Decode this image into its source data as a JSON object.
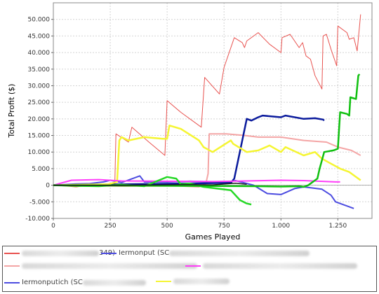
{
  "chart_data": {
    "type": "line",
    "xlabel": "Games Played",
    "ylabel": "Total Profit ($)",
    "xlim": [
      0,
      1400
    ],
    "ylim": [
      -10000,
      55000
    ],
    "grid": true,
    "legend_position": "bottom",
    "x_ticks": [
      "0",
      "250",
      "500",
      "750",
      "1.000",
      "1.250"
    ],
    "x_tick_values": [
      0,
      250,
      500,
      750,
      1000,
      1250
    ],
    "y_ticks": [
      "-10.000",
      "-5.000",
      "0",
      "5.000",
      "10.000",
      "15.000",
      "20.000",
      "25.000",
      "30.000",
      "35.000",
      "40.000",
      "45.000",
      "50.000"
    ],
    "y_tick_values": [
      -10000,
      -5000,
      0,
      5000,
      10000,
      15000,
      20000,
      25000,
      30000,
      35000,
      40000,
      45000,
      50000
    ],
    "series": [
      {
        "name": "349)",
        "color": "#e8524f",
        "width": 1,
        "points": [
          [
            0,
            0
          ],
          [
            100,
            -500
          ],
          [
            200,
            300
          ],
          [
            270,
            500
          ],
          [
            275,
            15500
          ],
          [
            330,
            13000
          ],
          [
            345,
            17500
          ],
          [
            420,
            13000
          ],
          [
            490,
            9000
          ],
          [
            500,
            25500
          ],
          [
            560,
            22000
          ],
          [
            650,
            17500
          ],
          [
            665,
            32500
          ],
          [
            730,
            27500
          ],
          [
            750,
            35500
          ],
          [
            795,
            44500
          ],
          [
            830,
            43000
          ],
          [
            840,
            41500
          ],
          [
            850,
            43500
          ],
          [
            900,
            46000
          ],
          [
            950,
            42500
          ],
          [
            1000,
            40000
          ],
          [
            1005,
            44500
          ],
          [
            1040,
            45500
          ],
          [
            1080,
            41500
          ],
          [
            1095,
            43000
          ],
          [
            1110,
            39000
          ],
          [
            1130,
            38000
          ],
          [
            1150,
            33000
          ],
          [
            1180,
            29000
          ],
          [
            1185,
            45000
          ],
          [
            1200,
            45500
          ],
          [
            1220,
            41000
          ],
          [
            1245,
            36000
          ],
          [
            1250,
            48000
          ],
          [
            1290,
            46000
          ],
          [
            1300,
            44000
          ],
          [
            1320,
            44500
          ],
          [
            1335,
            40500
          ],
          [
            1340,
            44000
          ],
          [
            1350,
            51500
          ]
        ]
      },
      {
        "name": "",
        "color": "#f4a5a5",
        "width": 2,
        "points": [
          [
            0,
            0
          ],
          [
            300,
            -300
          ],
          [
            550,
            -200
          ],
          [
            640,
            -500
          ],
          [
            670,
            500
          ],
          [
            680,
            3500
          ],
          [
            685,
            15500
          ],
          [
            760,
            15500
          ],
          [
            840,
            15000
          ],
          [
            900,
            14500
          ],
          [
            1000,
            14500
          ],
          [
            1100,
            13500
          ],
          [
            1200,
            13000
          ],
          [
            1250,
            11500
          ],
          [
            1310,
            10500
          ],
          [
            1350,
            9000
          ]
        ]
      },
      {
        "name": "Iermonput (SC)",
        "color": "#4c4ce0",
        "width": 2,
        "points": [
          [
            0,
            0
          ],
          [
            100,
            400
          ],
          [
            160,
            500
          ],
          [
            220,
            1000
          ],
          [
            250,
            1500
          ],
          [
            300,
            800
          ],
          [
            380,
            2800
          ],
          [
            400,
            1000
          ],
          [
            500,
            1000
          ],
          [
            600,
            1200
          ],
          [
            700,
            1000
          ],
          [
            760,
            800
          ],
          [
            800,
            1400
          ],
          [
            880,
            0
          ],
          [
            940,
            -2500
          ],
          [
            1000,
            -2800
          ],
          [
            1060,
            -1000
          ],
          [
            1100,
            -500
          ],
          [
            1180,
            -1200
          ],
          [
            1220,
            -3000
          ],
          [
            1240,
            -5000
          ],
          [
            1300,
            -6500
          ],
          [
            1320,
            -7000
          ]
        ]
      },
      {
        "name": "",
        "color": "#0a1a9c",
        "width": 2.5,
        "points": [
          [
            0,
            0
          ],
          [
            780,
            700
          ],
          [
            795,
            2000
          ],
          [
            850,
            20000
          ],
          [
            870,
            19500
          ],
          [
            900,
            20500
          ],
          [
            920,
            21000
          ],
          [
            1000,
            20500
          ],
          [
            1020,
            21000
          ],
          [
            1100,
            20000
          ],
          [
            1150,
            20200
          ],
          [
            1185,
            19800
          ],
          [
            1190,
            19500
          ]
        ]
      },
      {
        "name": "",
        "color": "#f5f532",
        "width": 2.5,
        "points": [
          [
            0,
            0
          ],
          [
            240,
            300
          ],
          [
            280,
            1000
          ],
          [
            290,
            13500
          ],
          [
            300,
            14500
          ],
          [
            330,
            13500
          ],
          [
            400,
            14500
          ],
          [
            480,
            14000
          ],
          [
            500,
            14000
          ],
          [
            510,
            18000
          ],
          [
            560,
            17000
          ],
          [
            640,
            13500
          ],
          [
            660,
            11500
          ],
          [
            700,
            10000
          ],
          [
            780,
            13500
          ],
          [
            790,
            12500
          ],
          [
            850,
            10000
          ],
          [
            900,
            10500
          ],
          [
            950,
            12000
          ],
          [
            1000,
            10000
          ],
          [
            1020,
            11500
          ],
          [
            1100,
            9000
          ],
          [
            1150,
            10000
          ],
          [
            1180,
            8000
          ],
          [
            1220,
            6500
          ],
          [
            1260,
            5000
          ],
          [
            1300,
            4000
          ],
          [
            1350,
            1500
          ]
        ]
      },
      {
        "name": "",
        "color": "#ff3ff8",
        "width": 2,
        "points": [
          [
            0,
            0
          ],
          [
            80,
            1500
          ],
          [
            200,
            1700
          ],
          [
            300,
            1300
          ],
          [
            500,
            1200
          ],
          [
            700,
            1100
          ],
          [
            850,
            1300
          ],
          [
            1000,
            1500
          ],
          [
            1100,
            1400
          ],
          [
            1240,
            1000
          ],
          [
            1260,
            1000
          ]
        ]
      },
      {
        "name": "",
        "color": "#26d826",
        "width": 2.5,
        "points": [
          [
            0,
            0
          ],
          [
            120,
            -200
          ],
          [
            200,
            -300
          ],
          [
            300,
            200
          ],
          [
            400,
            -300
          ],
          [
            500,
            2500
          ],
          [
            540,
            2000
          ],
          [
            560,
            300
          ],
          [
            600,
            500
          ],
          [
            660,
            -500
          ],
          [
            720,
            -1000
          ],
          [
            780,
            -1500
          ],
          [
            820,
            -4500
          ],
          [
            850,
            -5500
          ],
          [
            870,
            -5800
          ]
        ]
      },
      {
        "name": "",
        "color": "#10c010",
        "width": 2.5,
        "points": [
          [
            0,
            0
          ],
          [
            900,
            -300
          ],
          [
            1000,
            -400
          ],
          [
            1080,
            -300
          ],
          [
            1100,
            -500
          ],
          [
            1120,
            0
          ],
          [
            1130,
            500
          ],
          [
            1160,
            2000
          ],
          [
            1170,
            5000
          ],
          [
            1190,
            10000
          ],
          [
            1230,
            10500
          ],
          [
            1250,
            11000
          ],
          [
            1260,
            22000
          ],
          [
            1290,
            21500
          ],
          [
            1300,
            21000
          ],
          [
            1305,
            26500
          ],
          [
            1330,
            26000
          ],
          [
            1340,
            33000
          ],
          [
            1345,
            33500
          ]
        ]
      },
      {
        "name": "",
        "color": "#1a1a1a",
        "width": 1.5,
        "points": [
          [
            0,
            0
          ],
          [
            300,
            0
          ],
          [
            600,
            200
          ],
          [
            700,
            100
          ],
          [
            800,
            600
          ],
          [
            850,
            300
          ]
        ]
      }
    ]
  },
  "legend": {
    "rows": [
      [
        {
          "label": "349)",
          "color": "#e8524f",
          "blur_before": 110,
          "blur_after": 0
        },
        {
          "label": "Iermonput (SC",
          "color": "#4c4ce0",
          "blur_before": 0,
          "blur_after": 200
        }
      ],
      [
        {
          "label": "",
          "color": "#f4a5a5",
          "blur_before": 0,
          "blur_after": 250
        },
        {
          "label": "",
          "color": "#ff3ff8",
          "blur_before": 0,
          "blur_after": 220
        }
      ],
      [
        {
          "label": "Iermonputich (SC",
          "color": "#4c4ce0",
          "blur_before": 0,
          "blur_after": 90
        },
        {
          "label": "",
          "color": "#f5f532",
          "blur_before": 0,
          "blur_after": 80
        }
      ]
    ]
  }
}
